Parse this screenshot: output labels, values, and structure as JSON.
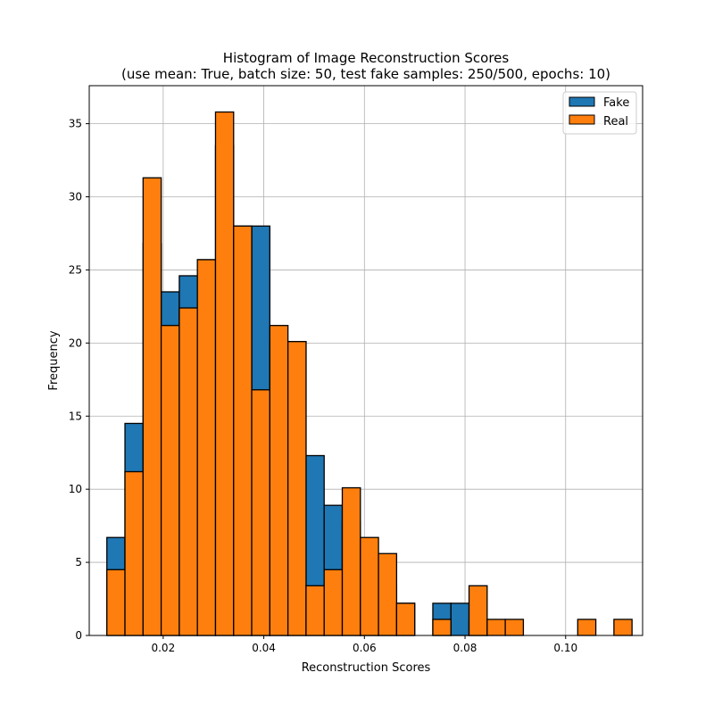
{
  "chart_data": {
    "type": "bar",
    "title": "Histogram of Image Reconstruction Scores",
    "subtitle": "(use mean: True, batch size: 50, test fake samples: 250/500, epochs: 10)",
    "xlabel": "Reconstruction Scores",
    "ylabel": "Frequency",
    "xlim": [
      0.0053,
      0.1153
    ],
    "ylim": [
      0,
      37.6
    ],
    "xticks": [
      0.02,
      0.04,
      0.06,
      0.08,
      0.1
    ],
    "xtick_labels": [
      "0.02",
      "0.04",
      "0.06",
      "0.08",
      "0.10"
    ],
    "yticks": [
      0,
      5,
      10,
      15,
      20,
      25,
      30,
      35
    ],
    "ytick_labels": [
      "0",
      "5",
      "10",
      "15",
      "20",
      "25",
      "30",
      "35"
    ],
    "grid": true,
    "legend_position": "top-right",
    "bin_edges": [
      0.0088,
      0.0124,
      0.016,
      0.0196,
      0.0232,
      0.0268,
      0.0304,
      0.034,
      0.0376,
      0.0412,
      0.0448,
      0.0484,
      0.052,
      0.0556,
      0.0592,
      0.0628,
      0.0664,
      0.07,
      0.0736,
      0.0772,
      0.0808,
      0.0844,
      0.088,
      0.0916,
      0.0952,
      0.0988,
      0.1024,
      0.106,
      0.1096,
      0.1132
    ],
    "series": [
      {
        "name": "Fake",
        "color": "#1f77b4",
        "values": [
          6.7,
          14.5,
          26.8,
          23.5,
          24.6,
          25.7,
          33.5,
          28.0,
          28.0,
          20.1,
          20.1,
          12.3,
          8.9,
          7.8,
          5.6,
          3.4,
          2.2,
          0,
          2.2,
          2.2,
          1.1,
          0,
          0,
          0,
          0,
          0,
          0,
          0,
          0
        ]
      },
      {
        "name": "Real",
        "color": "#ff7f0e",
        "values": [
          4.5,
          11.2,
          31.3,
          21.2,
          22.4,
          25.7,
          35.8,
          28.0,
          16.8,
          21.2,
          20.1,
          3.4,
          4.5,
          10.1,
          6.7,
          5.6,
          2.2,
          0,
          1.1,
          0,
          3.4,
          1.1,
          1.1,
          0,
          0,
          0,
          1.1,
          0,
          1.1
        ]
      }
    ]
  }
}
